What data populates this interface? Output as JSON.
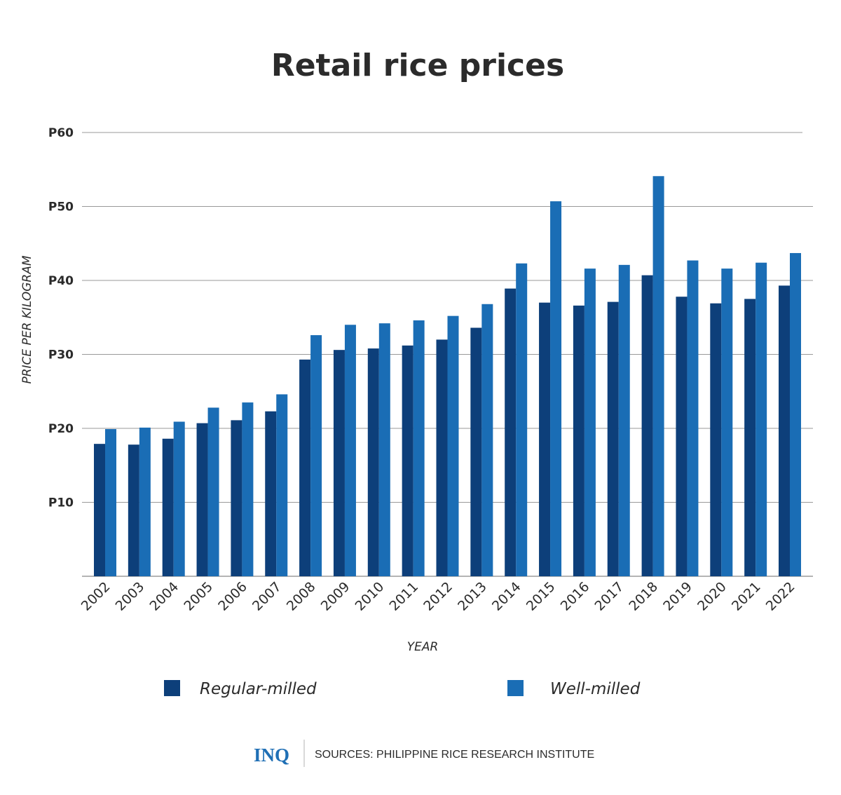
{
  "chart_data": {
    "type": "bar",
    "title": "Retail rice prices",
    "xlabel": "YEAR",
    "ylabel": "PRICE PER KILOGRAM",
    "ylim": [
      0,
      60
    ],
    "yticks": [
      10,
      20,
      30,
      40,
      50,
      60
    ],
    "ytick_labels": [
      "P10",
      "P20",
      "P30",
      "P40",
      "P50",
      "P60"
    ],
    "grid": true,
    "legend_position": "bottom",
    "categories": [
      "2002",
      "2003",
      "2004",
      "2005",
      "2006",
      "2007",
      "2008",
      "2009",
      "2010",
      "2011",
      "2012",
      "2013",
      "2014",
      "2015",
      "2016",
      "2017",
      "2018",
      "2019",
      "2020",
      "2021",
      "2022"
    ],
    "series": [
      {
        "name": "Regular-milled",
        "color": "#0d3f7a",
        "values": [
          17.9,
          17.8,
          18.6,
          20.7,
          21.1,
          22.3,
          29.3,
          30.6,
          30.8,
          31.2,
          32.0,
          33.6,
          38.9,
          37.0,
          36.6,
          37.1,
          40.7,
          37.8,
          36.9,
          37.5,
          39.3
        ]
      },
      {
        "name": "Well-milled",
        "color": "#1a6db5",
        "values": [
          19.9,
          20.1,
          20.9,
          22.8,
          23.5,
          24.6,
          32.6,
          34.0,
          34.2,
          34.6,
          35.2,
          36.8,
          42.3,
          50.7,
          41.6,
          42.1,
          54.1,
          42.7,
          41.6,
          42.4,
          43.7
        ]
      }
    ]
  },
  "footer": {
    "logo": "INQ",
    "source": "SOURCES: PHILIPPINE RICE RESEARCH INSTITUTE"
  }
}
